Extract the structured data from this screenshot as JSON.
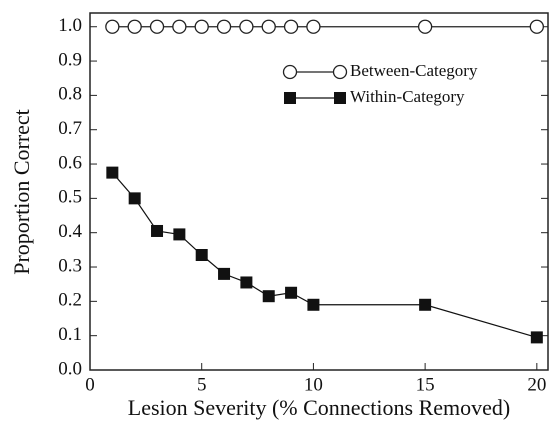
{
  "chart_data": {
    "type": "line",
    "xlabel": "Lesion Severity (% Connections Removed)",
    "ylabel": "Proportion Correct",
    "xlim": [
      0,
      20.5
    ],
    "ylim": [
      0,
      1.04
    ],
    "xticks": [
      0,
      5,
      10,
      15,
      20
    ],
    "yticks": [
      {
        "value": 0,
        "label": "0.0"
      },
      0.1,
      0.2,
      0.3,
      0.4,
      0.5,
      0.6,
      0.7,
      0.8,
      0.9,
      {
        "value": 1,
        "label": "1.0"
      }
    ],
    "legend": "upper right",
    "series": [
      {
        "name": "Between-Category",
        "marker": "circle",
        "color": "#222",
        "x": [
          1,
          2,
          3,
          4,
          5,
          6,
          7,
          8,
          9,
          10,
          15,
          20
        ],
        "values": [
          1,
          1,
          1,
          1,
          1,
          1,
          1,
          1,
          1,
          1,
          1,
          1
        ]
      },
      {
        "name": "Within-Category",
        "marker": "square",
        "color": "#111",
        "x": [
          1,
          2,
          3,
          4,
          5,
          6,
          7,
          8,
          9,
          10,
          15,
          20
        ],
        "values": [
          0.575,
          0.5,
          0.405,
          0.395,
          0.335,
          0.28,
          0.255,
          0.215,
          0.225,
          0.19,
          0.19,
          0.095
        ]
      }
    ]
  }
}
